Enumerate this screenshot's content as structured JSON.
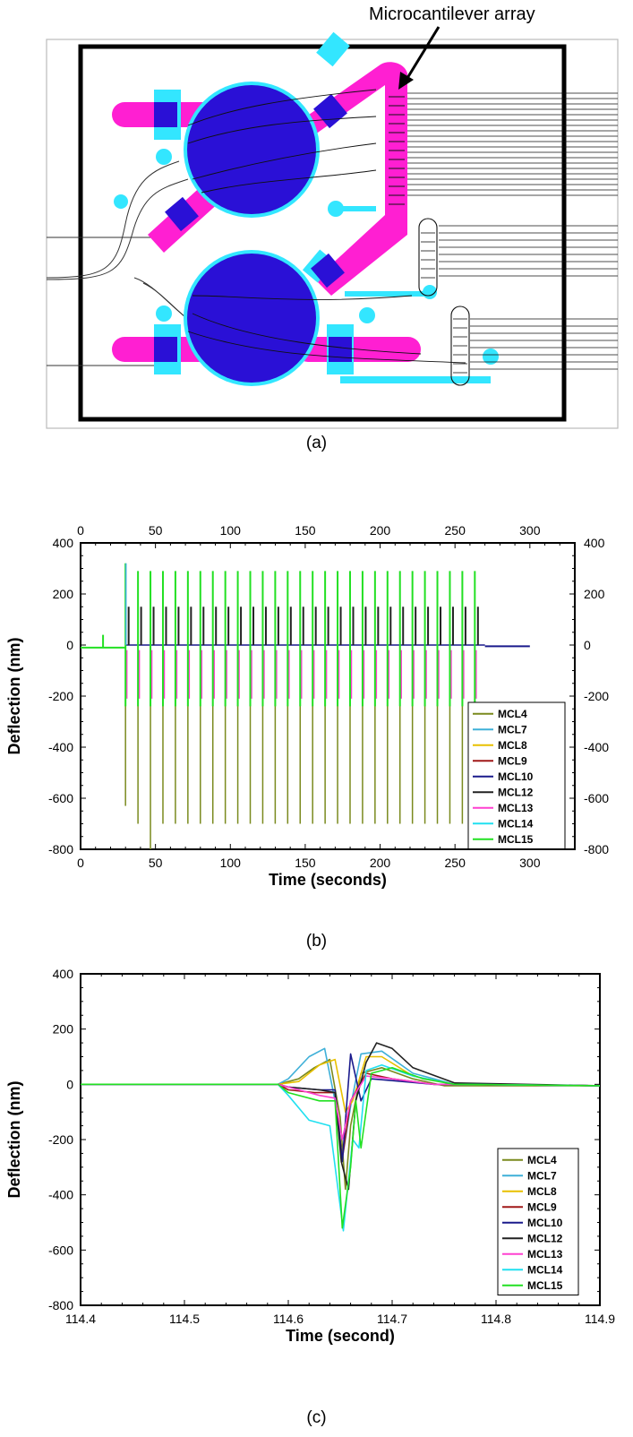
{
  "figure": {
    "panel_a": {
      "annotation": "Microcantilever array",
      "caption": "(a)",
      "colors": {
        "chamber": "#2a10d6",
        "channel": "#ff1fd2",
        "electrode": "#33e6ff",
        "frame": "#000000"
      }
    },
    "panel_b": {
      "caption": "(b)"
    },
    "panel_c": {
      "caption": "(c)"
    }
  },
  "chart_data": [
    {
      "type": "line",
      "xlabel": "Time (seconds)",
      "ylabel": "Deflection (nm)",
      "xlim": [
        0,
        330
      ],
      "ylim": [
        -800,
        400
      ],
      "xticks": [
        0,
        50,
        100,
        150,
        200,
        250,
        300
      ],
      "yticks": [
        400,
        200,
        0,
        -200,
        -400,
        -600,
        -800
      ],
      "grid": false,
      "legend_position": "bottom-right",
      "pulses": {
        "first_time": 30,
        "spacing": 8.33,
        "count": 29,
        "mirror_axes": true,
        "mcl15_max": 290,
        "mcl12_max": 150,
        "mcl13_min": -210,
        "mcl12_min": -700,
        "first_pulse_max": 320,
        "first_pulse_min": -630,
        "third_pulse_min": -800
      },
      "baseline": {
        "before": [
          0,
          -10
        ],
        "after": [
          270,
          -5
        ]
      },
      "series": [
        {
          "name": "MCL4",
          "color": "#7a8a1e"
        },
        {
          "name": "MCL7",
          "color": "#3fb0d8"
        },
        {
          "name": "MCL8",
          "color": "#e8c000"
        },
        {
          "name": "MCL9",
          "color": "#a01818"
        },
        {
          "name": "MCL10",
          "color": "#1a1a8c"
        },
        {
          "name": "MCL12",
          "color": "#222222"
        },
        {
          "name": "MCL13",
          "color": "#ff40d0"
        },
        {
          "name": "MCL14",
          "color": "#20e0f0"
        },
        {
          "name": "MCL15",
          "color": "#22e022"
        }
      ]
    },
    {
      "type": "line",
      "xlabel": "Time (second)",
      "ylabel": "Deflection (nm)",
      "xlim": [
        114.4,
        114.9
      ],
      "ylim": [
        -800,
        400
      ],
      "xticks": [
        114.4,
        114.5,
        114.6,
        114.7,
        114.8,
        114.9
      ],
      "yticks": [
        400,
        200,
        0,
        -200,
        -400,
        -600,
        -800
      ],
      "grid": false,
      "legend_position": "bottom-right",
      "series": [
        {
          "name": "MCL4",
          "color": "#7a8a1e",
          "points": [
            [
              114.4,
              0
            ],
            [
              114.59,
              0
            ],
            [
              114.61,
              20
            ],
            [
              114.625,
              60
            ],
            [
              114.64,
              90
            ],
            [
              114.65,
              -120
            ],
            [
              114.655,
              -380
            ],
            [
              114.66,
              -150
            ],
            [
              114.67,
              40
            ],
            [
              114.69,
              60
            ],
            [
              114.72,
              20
            ],
            [
              114.75,
              -5
            ],
            [
              114.9,
              -5
            ]
          ]
        },
        {
          "name": "MCL7",
          "color": "#3fb0d8",
          "points": [
            [
              114.4,
              0
            ],
            [
              114.59,
              0
            ],
            [
              114.6,
              20
            ],
            [
              114.62,
              100
            ],
            [
              114.635,
              130
            ],
            [
              114.645,
              -60
            ],
            [
              114.652,
              -270
            ],
            [
              114.66,
              -80
            ],
            [
              114.67,
              110
            ],
            [
              114.69,
              120
            ],
            [
              114.72,
              40
            ],
            [
              114.76,
              0
            ],
            [
              114.9,
              -5
            ]
          ]
        },
        {
          "name": "MCL8",
          "color": "#e8c000",
          "points": [
            [
              114.4,
              0
            ],
            [
              114.59,
              0
            ],
            [
              114.61,
              10
            ],
            [
              114.63,
              70
            ],
            [
              114.645,
              90
            ],
            [
              114.655,
              -100
            ],
            [
              114.662,
              -60
            ],
            [
              114.675,
              100
            ],
            [
              114.69,
              100
            ],
            [
              114.72,
              30
            ],
            [
              114.76,
              0
            ],
            [
              114.9,
              -5
            ]
          ]
        },
        {
          "name": "MCL9",
          "color": "#a01818",
          "points": [
            [
              114.4,
              0
            ],
            [
              114.59,
              0
            ],
            [
              114.6,
              -20
            ],
            [
              114.625,
              -30
            ],
            [
              114.645,
              -30
            ],
            [
              114.652,
              -270
            ],
            [
              114.66,
              -60
            ],
            [
              114.675,
              40
            ],
            [
              114.7,
              20
            ],
            [
              114.74,
              0
            ],
            [
              114.9,
              -5
            ]
          ]
        },
        {
          "name": "MCL10",
          "color": "#1a1a8c",
          "points": [
            [
              114.4,
              0
            ],
            [
              114.59,
              0
            ],
            [
              114.6,
              -10
            ],
            [
              114.63,
              -20
            ],
            [
              114.645,
              -20
            ],
            [
              114.652,
              -280
            ],
            [
              114.66,
              110
            ],
            [
              114.67,
              -60
            ],
            [
              114.68,
              20
            ],
            [
              114.71,
              10
            ],
            [
              114.74,
              0
            ],
            [
              114.9,
              -5
            ]
          ]
        },
        {
          "name": "MCL12",
          "color": "#222222",
          "points": [
            [
              114.4,
              0
            ],
            [
              114.59,
              0
            ],
            [
              114.6,
              -10
            ],
            [
              114.63,
              -20
            ],
            [
              114.645,
              -30
            ],
            [
              114.651,
              -280
            ],
            [
              114.658,
              -380
            ],
            [
              114.665,
              -60
            ],
            [
              114.675,
              80
            ],
            [
              114.685,
              150
            ],
            [
              114.7,
              130
            ],
            [
              114.72,
              60
            ],
            [
              114.76,
              5
            ],
            [
              114.9,
              -5
            ]
          ]
        },
        {
          "name": "MCL13",
          "color": "#ff40d0",
          "points": [
            [
              114.4,
              0
            ],
            [
              114.59,
              0
            ],
            [
              114.61,
              -20
            ],
            [
              114.63,
              -40
            ],
            [
              114.645,
              -50
            ],
            [
              114.652,
              -200
            ],
            [
              114.66,
              -60
            ],
            [
              114.675,
              30
            ],
            [
              114.7,
              20
            ],
            [
              114.74,
              0
            ],
            [
              114.9,
              -5
            ]
          ]
        },
        {
          "name": "MCL14",
          "color": "#20e0f0",
          "points": [
            [
              114.4,
              0
            ],
            [
              114.59,
              0
            ],
            [
              114.6,
              -40
            ],
            [
              114.62,
              -130
            ],
            [
              114.64,
              -150
            ],
            [
              114.653,
              -530
            ],
            [
              114.662,
              -200
            ],
            [
              114.668,
              -230
            ],
            [
              114.675,
              50
            ],
            [
              114.69,
              70
            ],
            [
              114.72,
              30
            ],
            [
              114.76,
              0
            ],
            [
              114.9,
              -5
            ]
          ]
        },
        {
          "name": "MCL15",
          "color": "#22e022",
          "points": [
            [
              114.4,
              0
            ],
            [
              114.59,
              0
            ],
            [
              114.6,
              -30
            ],
            [
              114.63,
              -60
            ],
            [
              114.645,
              -60
            ],
            [
              114.652,
              -520
            ],
            [
              114.66,
              -300
            ],
            [
              114.665,
              -60
            ],
            [
              114.67,
              -230
            ],
            [
              114.68,
              40
            ],
            [
              114.7,
              60
            ],
            [
              114.73,
              20
            ],
            [
              114.76,
              0
            ],
            [
              114.9,
              -5
            ]
          ]
        }
      ]
    }
  ]
}
